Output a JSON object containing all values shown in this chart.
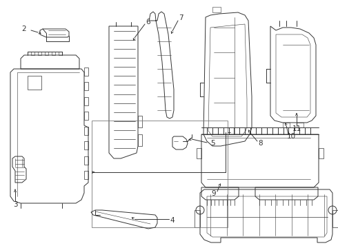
{
  "background_color": "#ffffff",
  "line_color": "#333333",
  "fig_width": 4.9,
  "fig_height": 3.6,
  "dpi": 100,
  "lw": 0.7,
  "label_fontsize": 7.5
}
